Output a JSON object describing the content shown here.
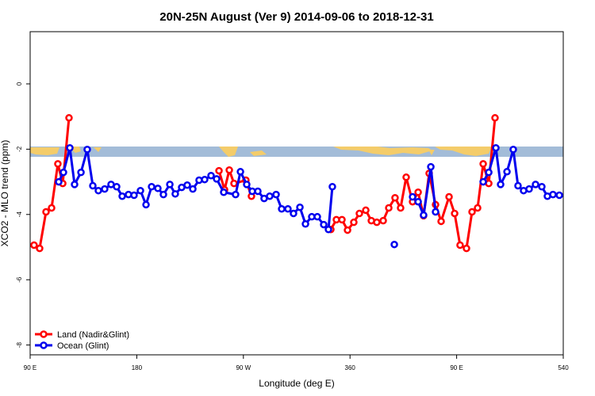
{
  "chart_data": {
    "type": "line",
    "title": "20N-25N August (Ver 9)   2014-09-06 to 2018-12-31",
    "x_label": "Longitude (deg E)",
    "y_label": "XCO2 - MLO trend (ppm)",
    "xlim": [
      90,
      540
    ],
    "ylim": [
      -8.3,
      1.6
    ],
    "xticks": [
      {
        "value": 90,
        "label": "90 E"
      },
      180,
      {
        "value": 270,
        "label": "90 W"
      },
      360,
      {
        "value": 450,
        "label": "90 E"
      },
      540
    ],
    "yticks": [
      0,
      -2,
      -4,
      -6,
      -8
    ],
    "legend": "bottomleft",
    "series": [
      {
        "name": "Land (Nadir&Glint)",
        "color": "#ff0000",
        "x": [
          93.3,
          98.0,
          103.4,
          108.1,
          113.4,
          117.5,
          122.8,
          null,
          249.4,
          254.1,
          258.1,
          262.1,
          272.1,
          276.8,
          null,
          343.8,
          348.5,
          353.2,
          357.9,
          363.2,
          367.9,
          373.3,
          378.0,
          382.6,
          388.0,
          392.7,
          398.0,
          402.7,
          407.4,
          412.8,
          417.5,
          422.1,
          426.8,
          432.2,
          436.9,
          443.6,
          448.3,
          452.9,
          458.3,
          463.0,
          467.7,
          472.4,
          477.1,
          482.4
        ],
        "values": [
          -4.94,
          -5.04,
          -3.92,
          -3.8,
          -2.45,
          -3.05,
          -1.04,
          null,
          -2.66,
          -3.24,
          -2.64,
          -3.05,
          -2.95,
          -3.44,
          null,
          -4.46,
          -4.16,
          -4.16,
          -4.48,
          -4.24,
          -3.97,
          -3.87,
          -4.19,
          -4.24,
          -4.19,
          -3.8,
          -3.49,
          -3.8,
          -2.86,
          -3.61,
          -3.32,
          -4.04,
          -2.74,
          -3.7,
          -4.21,
          -3.46,
          -3.97,
          -4.94,
          -5.04,
          -3.92,
          -3.8,
          -2.45,
          -3.05,
          -1.04
        ]
      },
      {
        "name": "Ocean (Glint)",
        "color": "#0000ee",
        "x": [
          114.1,
          118.1,
          123.5,
          127.5,
          132.9,
          138.2,
          142.9,
          147.6,
          152.9,
          158.3,
          163.0,
          167.7,
          173.0,
          177.7,
          183.1,
          187.8,
          192.5,
          197.8,
          202.5,
          207.9,
          212.5,
          217.9,
          222.6,
          227.3,
          232.6,
          237.3,
          242.7,
          247.4,
          253.4,
          263.4,
          267.5,
          272.8,
          277.5,
          282.2,
          287.5,
          292.2,
          297.6,
          302.3,
          307.6,
          312.3,
          317.7,
          322.4,
          327.7,
          332.4,
          337.8,
          341.8,
          345.1,
          null,
          397.4,
          null,
          412.8,
          417.5,
          422.1,
          428.2,
          432.2,
          null,
          472.4,
          477.1,
          483.1,
          487.1,
          492.5,
          497.8,
          501.8,
          506.5,
          511.2,
          516.6,
          521.9,
          526.6,
          531.3,
          536.7
        ],
        "values": [
          -3.0,
          -2.71,
          -1.96,
          -3.08,
          -2.71,
          -2.01,
          -3.12,
          -3.27,
          -3.22,
          -3.08,
          -3.15,
          -3.44,
          -3.39,
          -3.41,
          -3.27,
          -3.7,
          -3.15,
          -3.2,
          -3.39,
          -3.08,
          -3.37,
          -3.17,
          -3.1,
          -3.22,
          -2.95,
          -2.93,
          -2.81,
          -2.91,
          -3.32,
          -3.39,
          -2.69,
          -3.08,
          -3.29,
          -3.29,
          -3.51,
          -3.44,
          -3.39,
          -3.83,
          -3.83,
          -3.97,
          -3.78,
          -4.29,
          -4.07,
          -4.07,
          -4.31,
          -4.46,
          -3.15,
          null,
          -4.92,
          null,
          -3.46,
          -3.61,
          -4.02,
          -2.54,
          -3.92,
          null,
          -3.0,
          -2.71,
          -1.96,
          -3.08,
          -2.69,
          -2.01,
          -3.12,
          -3.27,
          -3.22,
          -3.08,
          -3.15,
          -3.44,
          -3.39,
          -3.41
        ]
      }
    ]
  }
}
